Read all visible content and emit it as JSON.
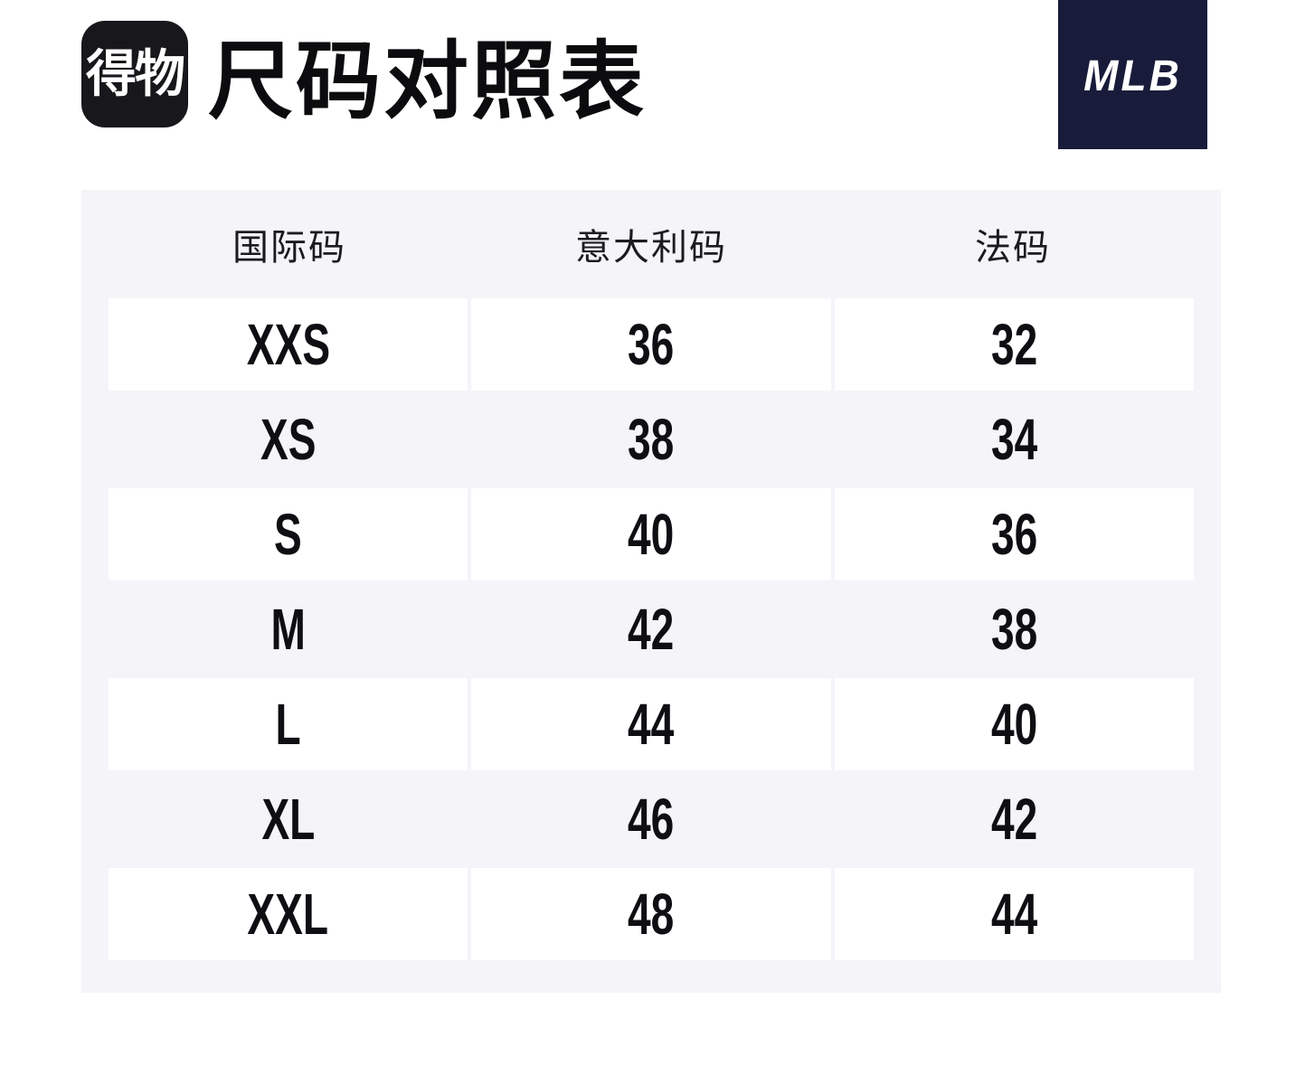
{
  "header": {
    "logo_text": "得物",
    "title": "尺码对照表",
    "brand_label": "MLB"
  },
  "colors": {
    "panel_bg": "#f4f4f9",
    "logo_bg": "#18181c",
    "brand_bg": "#181c3a",
    "text_dark": "#0f0f13"
  },
  "table": {
    "columns": [
      "国际码",
      "意大利码",
      "法码"
    ],
    "rows": [
      [
        "XXS",
        "36",
        "32"
      ],
      [
        "XS",
        "38",
        "34"
      ],
      [
        "S",
        "40",
        "36"
      ],
      [
        "M",
        "42",
        "38"
      ],
      [
        "L",
        "44",
        "40"
      ],
      [
        "XL",
        "46",
        "42"
      ],
      [
        "XXL",
        "48",
        "44"
      ]
    ]
  },
  "chart_data": {
    "type": "table",
    "title": "尺码对照表",
    "columns": [
      "国际码",
      "意大利码",
      "法码"
    ],
    "rows": [
      [
        "XXS",
        "36",
        "32"
      ],
      [
        "XS",
        "38",
        "34"
      ],
      [
        "S",
        "40",
        "36"
      ],
      [
        "M",
        "42",
        "38"
      ],
      [
        "L",
        "44",
        "40"
      ],
      [
        "XL",
        "46",
        "42"
      ],
      [
        "XXL",
        "48",
        "44"
      ]
    ]
  }
}
